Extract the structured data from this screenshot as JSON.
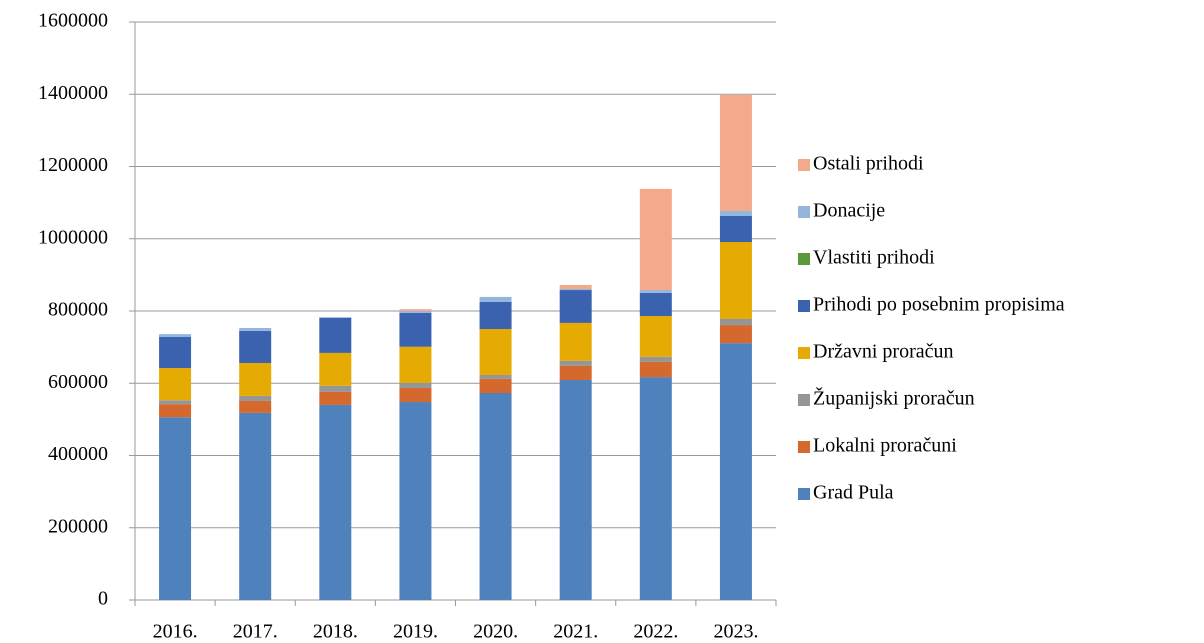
{
  "chart_data": {
    "type": "stacked_bar",
    "categories": [
      "2016.",
      "2017.",
      "2018.",
      "2019.",
      "2020.",
      "2021.",
      "2022.",
      "2023."
    ],
    "series": [
      {
        "name": "Grad Pula",
        "color": "#4f81bd",
        "values": [
          506000,
          518000,
          540000,
          548000,
          573000,
          609000,
          617000,
          711000
        ]
      },
      {
        "name": "Lokalni proračuni",
        "color": "#d4682d",
        "values": [
          36000,
          33000,
          36000,
          39000,
          39000,
          39000,
          42000,
          50000
        ]
      },
      {
        "name": "Županijski proračun",
        "color": "#969696",
        "values": [
          11000,
          14000,
          17000,
          14000,
          11000,
          14000,
          14000,
          17000
        ]
      },
      {
        "name": "Državni proračun",
        "color": "#e6ab02",
        "values": [
          89000,
          91000,
          91000,
          100000,
          127000,
          105000,
          113000,
          213000
        ]
      },
      {
        "name": "Prihodi po posebnim propisima",
        "color": "#3a62ae",
        "values": [
          86000,
          89000,
          97000,
          94000,
          75000,
          91000,
          64000,
          72000
        ]
      },
      {
        "name": "Vlastiti prihodi",
        "color": "#5b9a3a",
        "values": [
          0,
          0,
          0,
          0,
          0,
          0,
          0,
          0
        ]
      },
      {
        "name": "Donacije",
        "color": "#94b6dd",
        "values": [
          8000,
          8000,
          2000,
          5000,
          14000,
          3000,
          8000,
          14000
        ]
      },
      {
        "name": "Ostali prihodi",
        "color": "#f4a98a",
        "values": [
          0,
          0,
          0,
          5000,
          0,
          11000,
          280000,
          321000
        ]
      }
    ],
    "ylim": [
      0,
      1600000
    ],
    "yticks": [
      0,
      200000,
      400000,
      600000,
      800000,
      1000000,
      1200000,
      1400000,
      1600000
    ],
    "grid": true,
    "legend": "right"
  }
}
